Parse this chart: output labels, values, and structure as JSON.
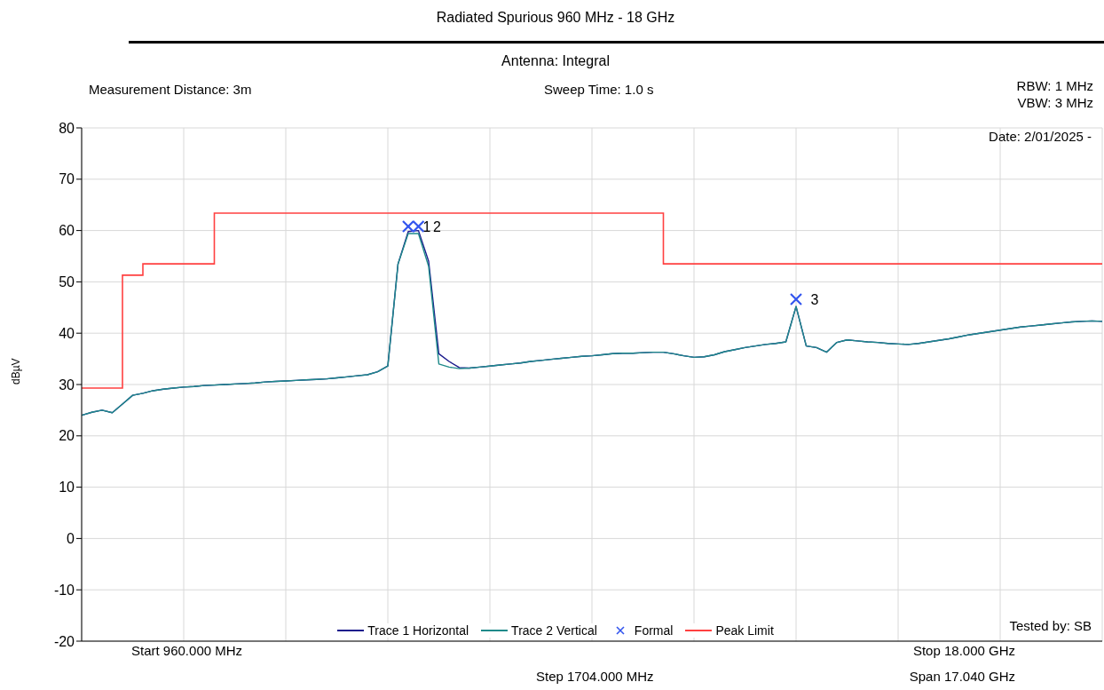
{
  "chart_data": {
    "type": "line",
    "title": "Radiated Spurious 960 MHz - 18 GHz",
    "subtitle": "Antenna: Integral",
    "ylabel": "dBµV",
    "annotations": [
      "Measurement Distance: 3m",
      "Sweep Time: 1.0 s",
      "RBW: 1 MHz",
      "VBW: 3 MHz",
      "Date: 2/01/2025 -",
      "Tested by: SB",
      "Start 960.000 MHz",
      "Stop 18.000 GHz",
      "Step 1704.000 MHz",
      "Span 17.040 GHz",
      "1",
      "2",
      "3"
    ],
    "categories": [
      null,
      null,
      null,
      null,
      null,
      null,
      null,
      null,
      null,
      null,
      null,
      null,
      null,
      null,
      null,
      null,
      null,
      null,
      null,
      null,
      null,
      null,
      null,
      null,
      null,
      null,
      null,
      null,
      null,
      null,
      null,
      null,
      null,
      null,
      null,
      null,
      null,
      null,
      null,
      null,
      null,
      null,
      null,
      null,
      null,
      null,
      null,
      null,
      null,
      null,
      null,
      null,
      null,
      null,
      null,
      null,
      null,
      null,
      null,
      null,
      null,
      null,
      null,
      null,
      null,
      null,
      null,
      null,
      null,
      null,
      null,
      null,
      null,
      null,
      null,
      null,
      null,
      null,
      null,
      null,
      null,
      null,
      null,
      null,
      null,
      null,
      null,
      null,
      null,
      null,
      null,
      null,
      null,
      null,
      null,
      null,
      null,
      null,
      null,
      null,
      null
    ],
    "ylim": [
      -20,
      80
    ],
    "yticks": [
      -20,
      -10,
      0,
      10,
      20,
      30,
      40,
      50,
      60,
      70,
      80
    ],
    "grid": true,
    "legend": "bottom",
    "tick_labels": "y",
    "series": [
      {
        "name": "Trace 1 Horizontal",
        "color": "#1a1a8c",
        "values": [
          24,
          24.6,
          25,
          24.5,
          26.2,
          27.9,
          28.3,
          28.8,
          29.1,
          29.3,
          29.5,
          29.6,
          29.8,
          29.9,
          30,
          30.1,
          30.2,
          30.3,
          30.5,
          30.6,
          30.7,
          30.8,
          30.9,
          31,
          31.1,
          31.3,
          31.5,
          31.7,
          31.9,
          32.5,
          33.6,
          53.5,
          59.8,
          60,
          54,
          36,
          34.5,
          33.3,
          33.2,
          33.4,
          33.6,
          33.8,
          34,
          34.2,
          34.5,
          34.7,
          34.9,
          35.1,
          35.3,
          35.5,
          35.6,
          35.8,
          36,
          36.1,
          36.1,
          36.2,
          36.3,
          36.3,
          36,
          35.6,
          35.3,
          35.4,
          35.8,
          36.4,
          36.8,
          37.2,
          37.5,
          37.8,
          38,
          38.3,
          45.2,
          37.5,
          37.2,
          36.3,
          38.2,
          38.7,
          38.5,
          38.3,
          38.2,
          38,
          37.9,
          37.8,
          38,
          38.3,
          38.6,
          38.9,
          39.3,
          39.7,
          40,
          40.3,
          40.6,
          40.9,
          41.2,
          41.4,
          41.6,
          41.8,
          42,
          42.2,
          42.3,
          42.4,
          42.3
        ]
      },
      {
        "name": "Trace 2 Vertical",
        "color": "#1f8a8a",
        "values": [
          24,
          24.6,
          25,
          24.5,
          26.2,
          27.9,
          28.3,
          28.8,
          29.1,
          29.3,
          29.5,
          29.6,
          29.8,
          29.9,
          30,
          30.1,
          30.2,
          30.3,
          30.5,
          30.6,
          30.7,
          30.8,
          30.9,
          31,
          31.1,
          31.3,
          31.5,
          31.7,
          31.9,
          32.5,
          33.6,
          53.5,
          59.4,
          59.4,
          53,
          34,
          33.4,
          33.1,
          33.2,
          33.4,
          33.6,
          33.8,
          34,
          34.2,
          34.5,
          34.7,
          34.9,
          35.1,
          35.3,
          35.5,
          35.6,
          35.8,
          36,
          36.1,
          36.1,
          36.2,
          36.3,
          36.3,
          36,
          35.6,
          35.3,
          35.4,
          35.8,
          36.4,
          36.8,
          37.2,
          37.5,
          37.8,
          38,
          38.3,
          45.2,
          37.5,
          37.2,
          36.3,
          38.2,
          38.7,
          38.5,
          38.3,
          38.2,
          38,
          37.9,
          37.8,
          38,
          38.3,
          38.6,
          38.9,
          39.3,
          39.7,
          40,
          40.3,
          40.6,
          40.9,
          41.2,
          41.4,
          41.6,
          41.8,
          42,
          42.2,
          42.3,
          42.4,
          42.3
        ]
      },
      {
        "name": "Formal",
        "color": "#3355ee",
        "type": "scatter",
        "marker": "cross",
        "values": [
          null,
          null,
          null,
          null,
          null,
          null,
          null,
          null,
          null,
          null,
          null,
          null,
          null,
          null,
          null,
          null,
          null,
          null,
          null,
          null,
          null,
          null,
          null,
          null,
          null,
          null,
          null,
          null,
          null,
          null,
          null,
          null,
          60.8,
          60.8,
          null,
          null,
          null,
          null,
          null,
          null,
          null,
          null,
          null,
          null,
          null,
          null,
          null,
          null,
          null,
          null,
          null,
          null,
          null,
          null,
          null,
          null,
          null,
          null,
          null,
          null,
          null,
          null,
          null,
          null,
          null,
          null,
          null,
          null,
          null,
          null,
          46.6,
          null,
          null,
          null,
          null,
          null,
          null,
          null,
          null,
          null,
          null,
          null,
          null,
          null,
          null,
          null,
          null,
          null,
          null,
          null,
          null,
          null,
          null,
          null,
          null,
          null,
          null,
          null,
          null,
          null,
          null
        ]
      },
      {
        "name": "Peak Limit",
        "color": "#ff4040",
        "type": "step",
        "values": [
          29.3,
          29.3,
          29.3,
          29.3,
          51.3,
          51.3,
          53.5,
          53.5,
          53.5,
          53.5,
          53.5,
          53.5,
          53.5,
          63.4,
          63.4,
          63.4,
          63.4,
          63.4,
          63.4,
          63.4,
          63.4,
          63.4,
          63.4,
          63.4,
          63.4,
          63.4,
          63.4,
          63.4,
          63.4,
          63.4,
          63.4,
          63.4,
          63.4,
          63.4,
          63.4,
          63.4,
          63.4,
          63.4,
          63.4,
          63.4,
          63.4,
          63.4,
          63.4,
          63.4,
          63.4,
          63.4,
          63.4,
          63.4,
          63.4,
          63.4,
          63.4,
          63.4,
          63.4,
          63.4,
          63.4,
          63.4,
          63.4,
          53.5,
          53.5,
          53.5,
          53.5,
          53.5,
          53.5,
          53.5,
          53.5,
          53.5,
          53.5,
          53.5,
          53.5,
          53.5,
          53.5,
          53.5,
          53.5,
          53.5,
          53.5,
          53.5,
          53.5,
          53.5,
          53.5,
          53.5,
          53.5,
          53.5,
          53.5,
          53.5,
          53.5,
          53.5,
          53.5,
          53.5,
          53.5,
          53.5,
          53.5,
          53.5,
          53.5,
          53.5,
          53.5,
          53.5,
          53.5,
          53.5,
          53.5,
          53.5,
          53.5
        ]
      }
    ]
  }
}
